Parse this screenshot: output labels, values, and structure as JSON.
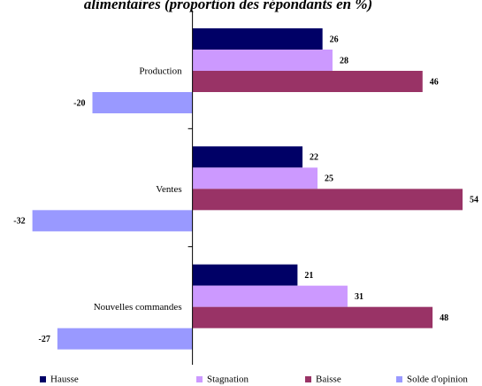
{
  "chart_data": {
    "type": "hbar",
    "title": "alimentaires (proportion des répondants en %)",
    "categories": [
      "Production",
      "Ventes",
      "Nouvelles commandes"
    ],
    "series": [
      {
        "name": "Hausse",
        "color": "#000066",
        "values": [
          26,
          22,
          21
        ]
      },
      {
        "name": "Stagnation",
        "color": "#cc99ff",
        "values": [
          28,
          25,
          31
        ]
      },
      {
        "name": "Baisse",
        "color": "#993366",
        "values": [
          46,
          54,
          48
        ]
      },
      {
        "name": "Solde d'opinion",
        "color": "#9999ff",
        "values": [
          -20,
          -32,
          -27
        ]
      }
    ],
    "xlim": [
      -36,
      57
    ],
    "legend": "bottom"
  }
}
